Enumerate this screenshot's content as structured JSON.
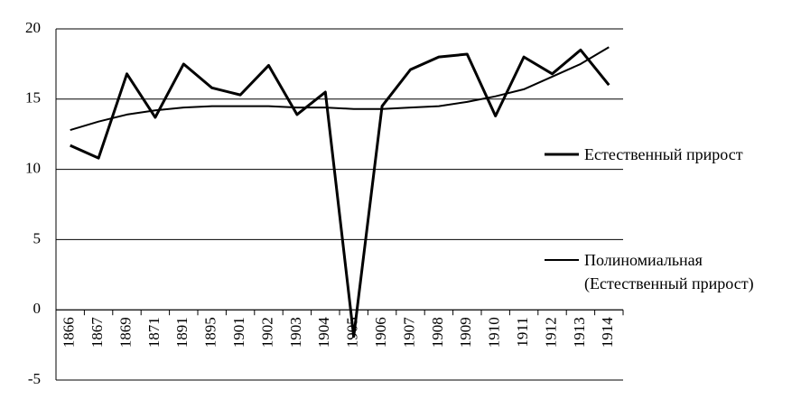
{
  "chart_data": {
    "type": "line",
    "categories": [
      "1866",
      "1867",
      "1869",
      "1871",
      "1891",
      "1895",
      "1901",
      "1902",
      "1903",
      "1904",
      "1905",
      "1906",
      "1907",
      "1908",
      "1909",
      "1910",
      "1911",
      "1912",
      "1913",
      "1914"
    ],
    "series": [
      {
        "name": "Естественный прирост",
        "color": "#000000",
        "width": 3,
        "values": [
          11.7,
          10.8,
          16.8,
          13.7,
          17.5,
          15.8,
          15.3,
          17.4,
          13.9,
          15.5,
          -1.9,
          14.5,
          17.1,
          18.0,
          18.2,
          13.8,
          18.0,
          16.8,
          18.5,
          16.0
        ]
      },
      {
        "name": "Полиномиальная (Естественный прирост)",
        "color": "#000000",
        "width": 2,
        "values": [
          12.8,
          13.4,
          13.9,
          14.2,
          14.4,
          14.5,
          14.5,
          14.5,
          14.4,
          14.4,
          14.3,
          14.3,
          14.4,
          14.5,
          14.8,
          15.2,
          15.7,
          16.6,
          17.5,
          18.7
        ]
      }
    ],
    "ylim": [
      -5,
      20
    ],
    "yticks": [
      -5,
      0,
      5,
      10,
      15,
      20
    ],
    "grid": true,
    "legend": "right"
  }
}
